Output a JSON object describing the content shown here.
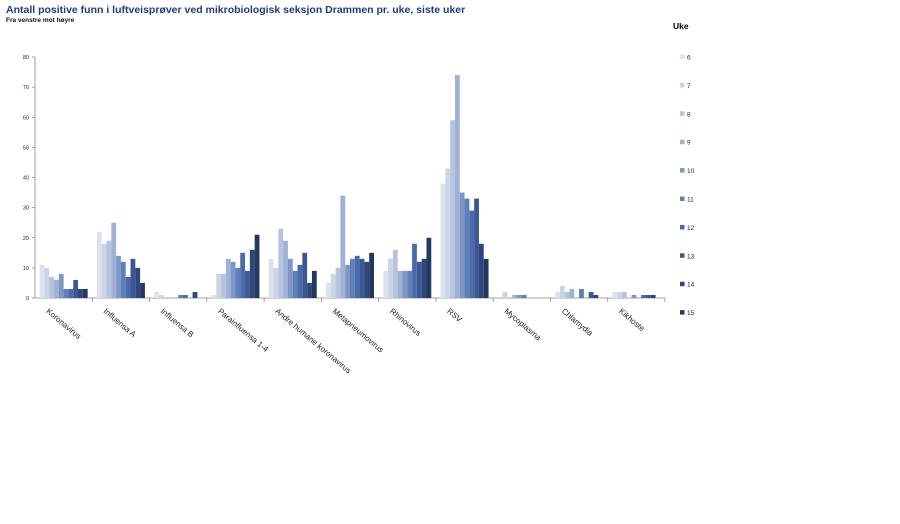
{
  "header": {
    "title": "Antall positive funn i luftveisprøver ved mikrobiologisk seksjon Drammen pr. uke, siste uker",
    "subtitle": "Fra venstre mot høyre"
  },
  "chart_data": {
    "type": "bar",
    "title": "Antall positive funn i luftveisprøver ved mikrobiologisk seksjon Drammen pr. uke, siste uker",
    "subtitle": "Fra venstre mot høyre",
    "legend_title": "Uke",
    "legend_position": "right",
    "ylim": [
      0,
      80
    ],
    "yticks": [
      0,
      10,
      20,
      30,
      40,
      50,
      60,
      70,
      80
    ],
    "grid": false,
    "categories": [
      "Koronavirus",
      "Influensa A",
      "Influensa B",
      "Parainfluensa 1-4",
      "Andre humane koronavirus",
      "Metapneumovirus",
      "Rhinovirus",
      "RSV",
      "Mycoplasma",
      "Chlamydia",
      "Kikhoste"
    ],
    "series": [
      {
        "name": "6",
        "color": "#dde3ee",
        "values": [
          11,
          22,
          2,
          1,
          13,
          5,
          9,
          38,
          0,
          2,
          2
        ]
      },
      {
        "name": "7",
        "color": "#ccd5e6",
        "values": [
          10,
          18,
          1,
          8,
          10,
          8,
          13,
          43,
          2,
          4,
          2
        ]
      },
      {
        "name": "8",
        "color": "#b6c3dd",
        "values": [
          7,
          19,
          0,
          8,
          23,
          10,
          16,
          59,
          0,
          2,
          2
        ]
      },
      {
        "name": "9",
        "color": "#9fb1d4",
        "values": [
          6,
          25,
          0,
          13,
          19,
          34,
          9,
          74,
          1,
          3,
          0
        ]
      },
      {
        "name": "10",
        "color": "#7d96c6",
        "values": [
          8,
          14,
          0,
          12,
          13,
          11,
          9,
          35,
          1,
          0,
          1
        ]
      },
      {
        "name": "11",
        "color": "#5f7fbb",
        "values": [
          3,
          12,
          1,
          10,
          9,
          13,
          9,
          33,
          1,
          3,
          0
        ]
      },
      {
        "name": "12",
        "color": "#4a6aa9",
        "values": [
          3,
          7,
          1,
          15,
          11,
          14,
          18,
          29,
          0,
          0,
          1
        ]
      },
      {
        "name": "13",
        "color": "#3c5893",
        "values": [
          6,
          13,
          0,
          9,
          15,
          13,
          12,
          33,
          0,
          2,
          1
        ]
      },
      {
        "name": "14",
        "color": "#2f467a",
        "values": [
          3,
          10,
          2,
          16,
          5,
          12,
          13,
          18,
          0,
          1,
          1
        ]
      },
      {
        "name": "15",
        "color": "#233861",
        "values": [
          3,
          5,
          0,
          21,
          9,
          15,
          20,
          13,
          0,
          0,
          0
        ]
      }
    ]
  }
}
